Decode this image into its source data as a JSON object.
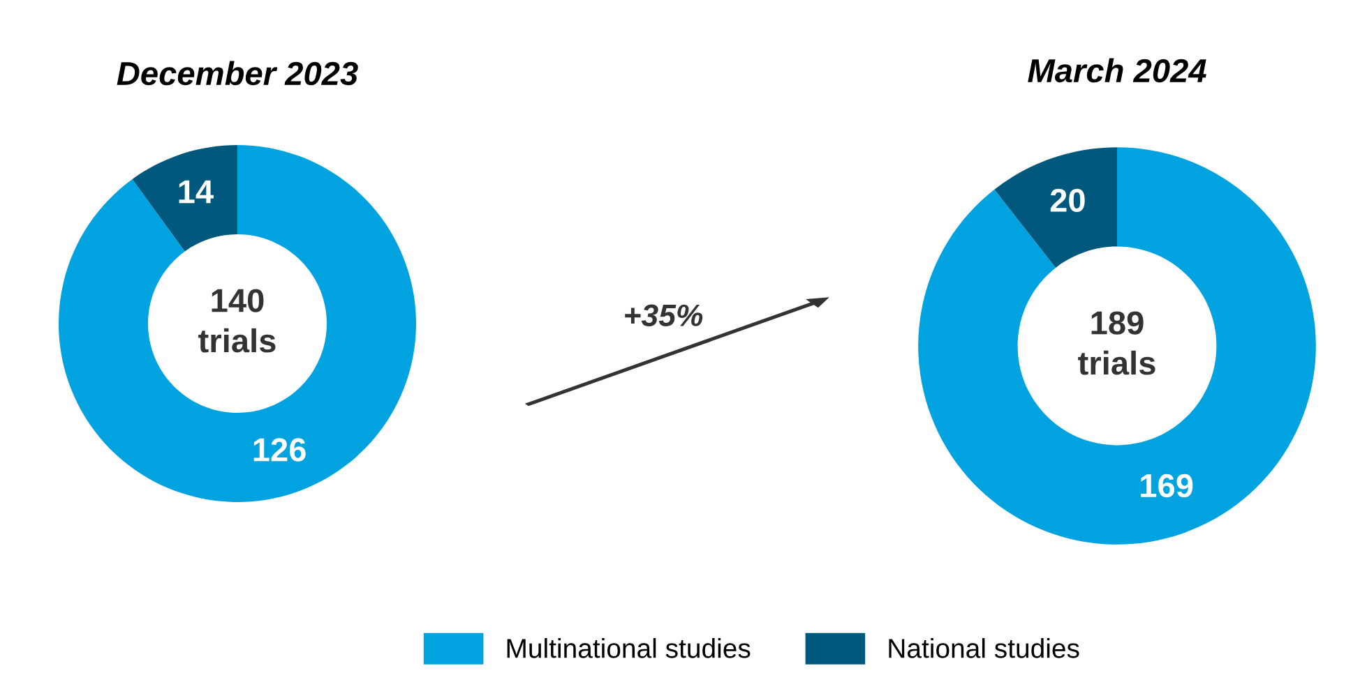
{
  "chart_data": [
    {
      "type": "donut",
      "title": "December 2023",
      "categories": [
        "Multinational studies",
        "National studies"
      ],
      "values": [
        126,
        14
      ],
      "colors": [
        "#00a3e0",
        "#00587c"
      ],
      "data_labels": true,
      "annotations": [
        "140\ntrials"
      ],
      "legend": "bottom"
    },
    {
      "type": "donut",
      "title": "March 2024",
      "categories": [
        null,
        null
      ],
      "values": [
        169,
        20
      ],
      "colors": [
        "#00a3e0",
        "#00587c"
      ],
      "data_labels": true,
      "annotations": [
        "189\ntrials",
        "+35%"
      ]
    }
  ]
}
